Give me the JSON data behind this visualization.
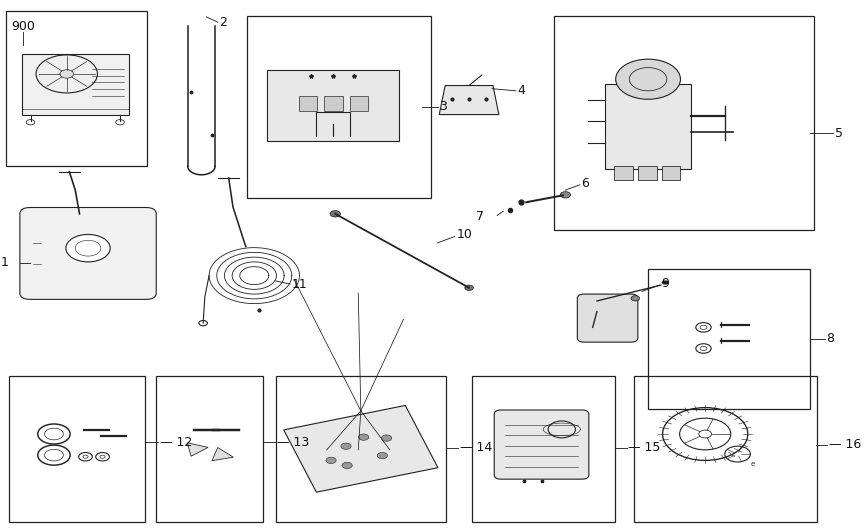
{
  "bg_color": "#ffffff",
  "line_color": "#222222",
  "label_color": "#111111",
  "box_color": "#222222",
  "label_fs": 9
}
